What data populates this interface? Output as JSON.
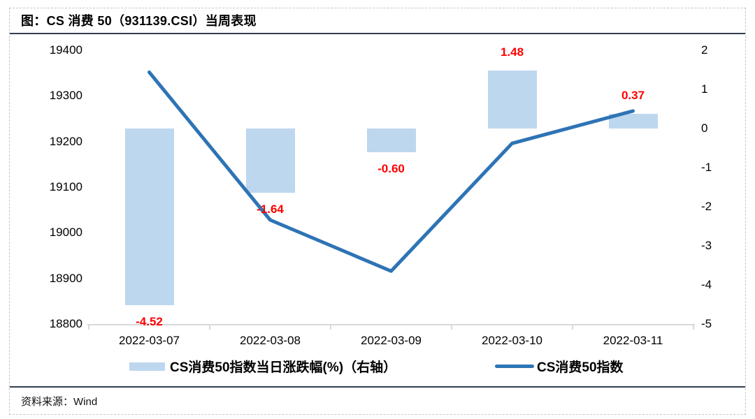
{
  "page": {
    "title": "图：CS 消费 50（931139.CSI）当周表现",
    "source_label": "资料来源：",
    "source_value": "Wind"
  },
  "colors": {
    "bar": "#BDD7EE",
    "line": "#2E74B5",
    "data_label": "#FF0000",
    "separator": "#333F50",
    "axis_line": "#D9D9D9",
    "page_border": "#C6C6C6"
  },
  "chart_data": {
    "type": "bar",
    "subtype": "bar+line combo, dual axis",
    "categories": [
      "2022-03-07",
      "2022-03-08",
      "2022-03-09",
      "2022-03-10",
      "2022-03-11"
    ],
    "series": [
      {
        "name": "CS消费50指数当日涨跌幅(%)（右轴）",
        "type": "bar",
        "axis": "right",
        "values": [
          -4.52,
          -1.64,
          -0.6,
          1.48,
          0.37
        ],
        "labels": [
          "-4.52",
          "-1.64",
          "-0.60",
          "1.48",
          "0.37"
        ]
      },
      {
        "name": "CS消费50指数",
        "type": "line",
        "axis": "left",
        "values": [
          19352,
          19028,
          18916,
          19196,
          19267
        ]
      }
    ],
    "left_axis": {
      "min": 18800,
      "max": 19400,
      "ticks": [
        "19400",
        "19300",
        "19200",
        "19100",
        "19000",
        "18900",
        "18800"
      ]
    },
    "right_axis": {
      "min": -5,
      "max": 2,
      "ticks": [
        "2",
        "1",
        "0",
        "-1",
        "-2",
        "-3",
        "-4",
        "-5"
      ]
    },
    "grid": false,
    "legend_position": "bottom"
  }
}
